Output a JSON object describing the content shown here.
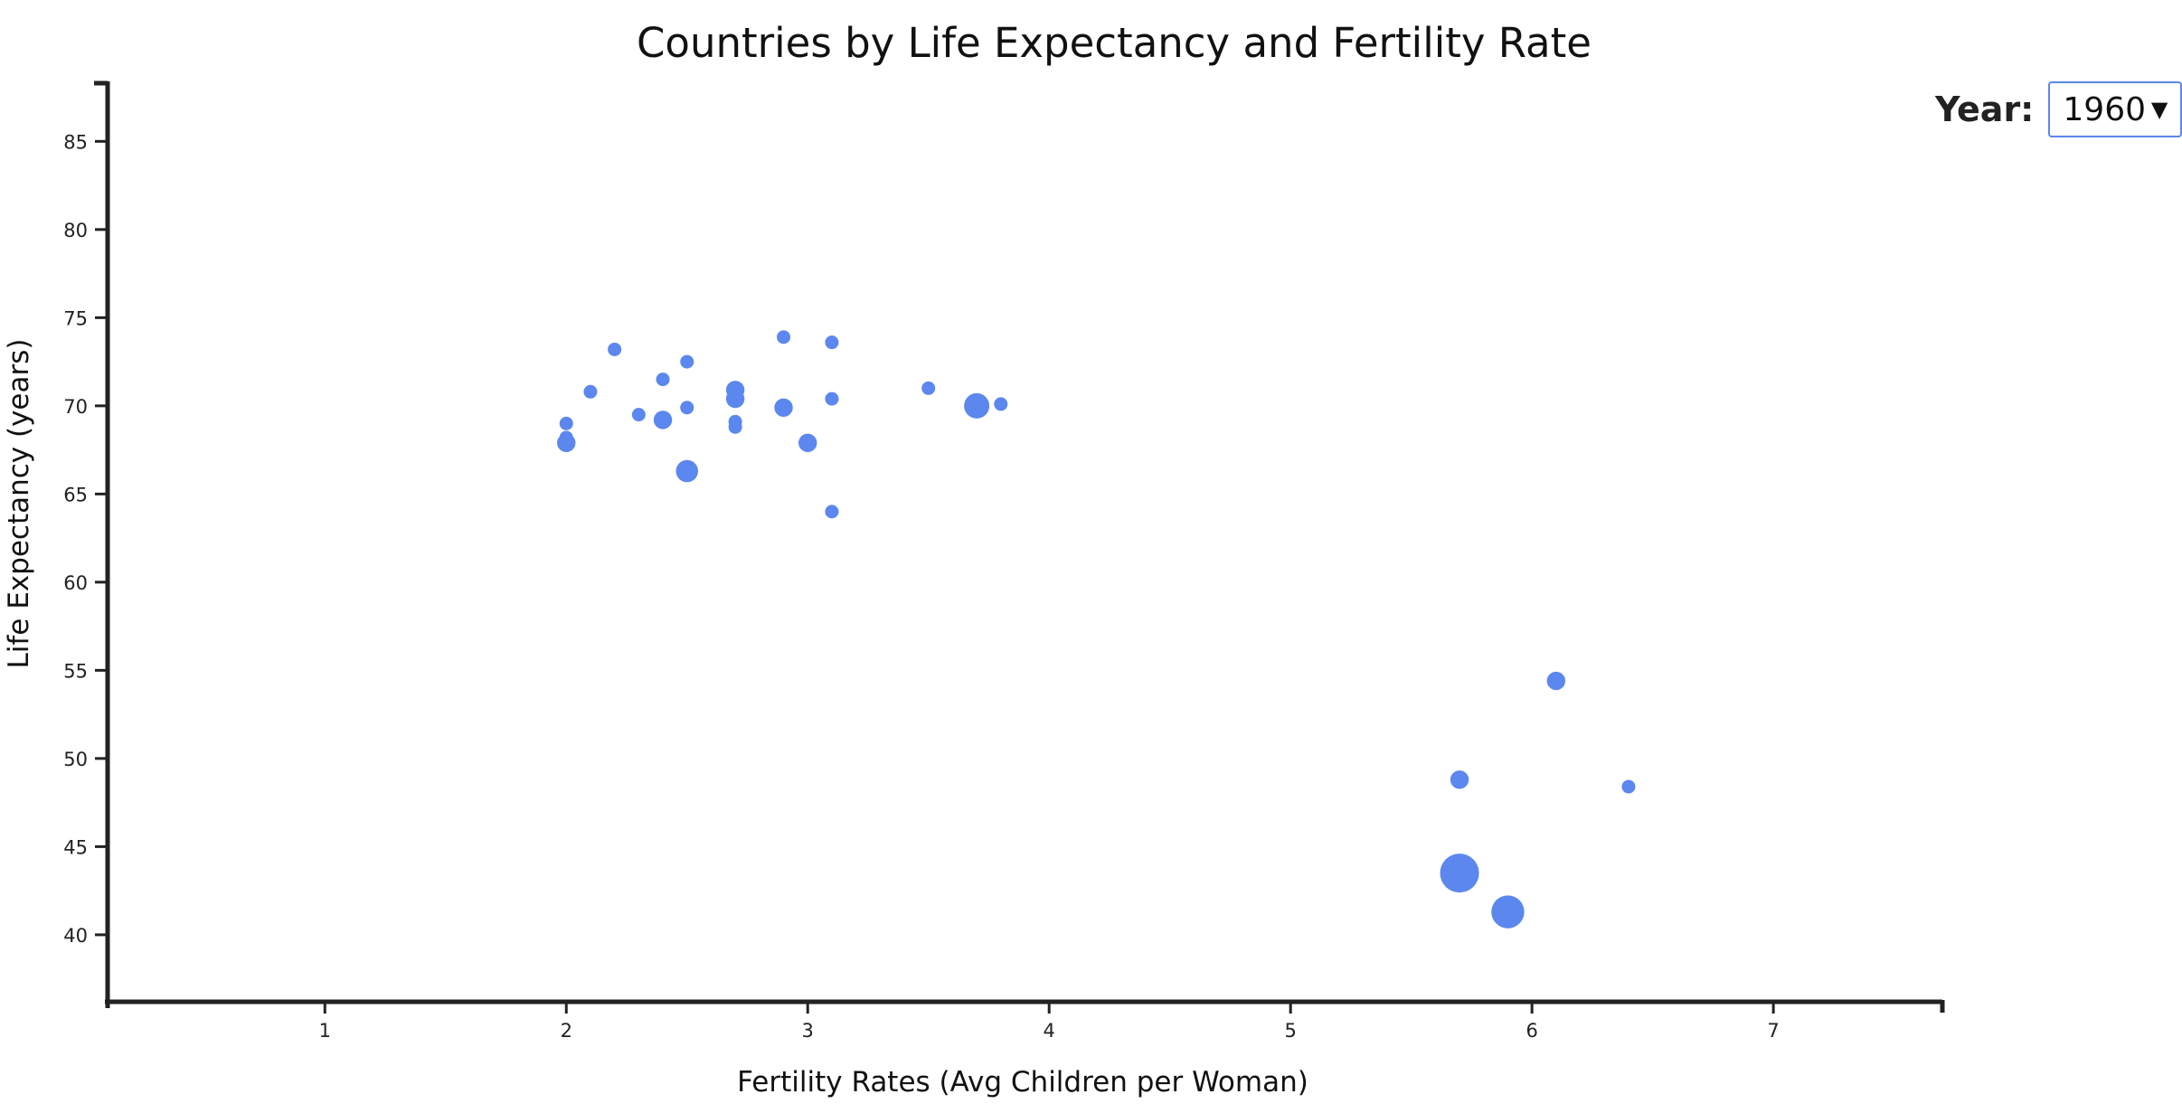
{
  "year_control": {
    "label": "Year:",
    "selected": "1960"
  },
  "chart_data": {
    "type": "scatter",
    "title": "Countries by Life Expectancy and Fertility Rate",
    "xlabel": "Fertility Rates (Avg Children per Woman)",
    "ylabel": "Life Expectancy (years)",
    "xlim": [
      0.1,
      7.7
    ],
    "ylim": [
      36.2,
      88.3
    ],
    "x_ticks": [
      1,
      2,
      3,
      4,
      5,
      6,
      7
    ],
    "y_ticks": [
      40,
      45,
      50,
      55,
      60,
      65,
      70,
      75,
      80,
      85
    ],
    "marker_color": "#5b87ee",
    "points": [
      {
        "x": 2.0,
        "y": 69.0,
        "size": 1
      },
      {
        "x": 2.0,
        "y": 68.2,
        "size": 1
      },
      {
        "x": 2.0,
        "y": 67.9,
        "size": 2
      },
      {
        "x": 2.1,
        "y": 70.8,
        "size": 1
      },
      {
        "x": 2.2,
        "y": 73.2,
        "size": 1
      },
      {
        "x": 2.3,
        "y": 69.5,
        "size": 1
      },
      {
        "x": 2.4,
        "y": 71.5,
        "size": 1
      },
      {
        "x": 2.4,
        "y": 69.2,
        "size": 2
      },
      {
        "x": 2.5,
        "y": 72.5,
        "size": 1
      },
      {
        "x": 2.5,
        "y": 69.9,
        "size": 1
      },
      {
        "x": 2.5,
        "y": 66.3,
        "size": 3
      },
      {
        "x": 2.7,
        "y": 70.9,
        "size": 2
      },
      {
        "x": 2.7,
        "y": 70.4,
        "size": 2
      },
      {
        "x": 2.7,
        "y": 69.1,
        "size": 1
      },
      {
        "x": 2.7,
        "y": 68.8,
        "size": 1
      },
      {
        "x": 2.9,
        "y": 73.9,
        "size": 1
      },
      {
        "x": 2.9,
        "y": 69.9,
        "size": 2
      },
      {
        "x": 3.0,
        "y": 67.9,
        "size": 2
      },
      {
        "x": 3.1,
        "y": 73.6,
        "size": 1
      },
      {
        "x": 3.1,
        "y": 70.4,
        "size": 1
      },
      {
        "x": 3.1,
        "y": 64.0,
        "size": 1
      },
      {
        "x": 3.5,
        "y": 71.0,
        "size": 1
      },
      {
        "x": 3.7,
        "y": 70.0,
        "size": 4
      },
      {
        "x": 3.8,
        "y": 70.1,
        "size": 1
      },
      {
        "x": 5.7,
        "y": 48.8,
        "size": 2
      },
      {
        "x": 5.7,
        "y": 43.5,
        "size": 10
      },
      {
        "x": 5.9,
        "y": 41.3,
        "size": 7
      },
      {
        "x": 6.1,
        "y": 54.4,
        "size": 2
      },
      {
        "x": 6.4,
        "y": 48.4,
        "size": 1
      }
    ]
  }
}
